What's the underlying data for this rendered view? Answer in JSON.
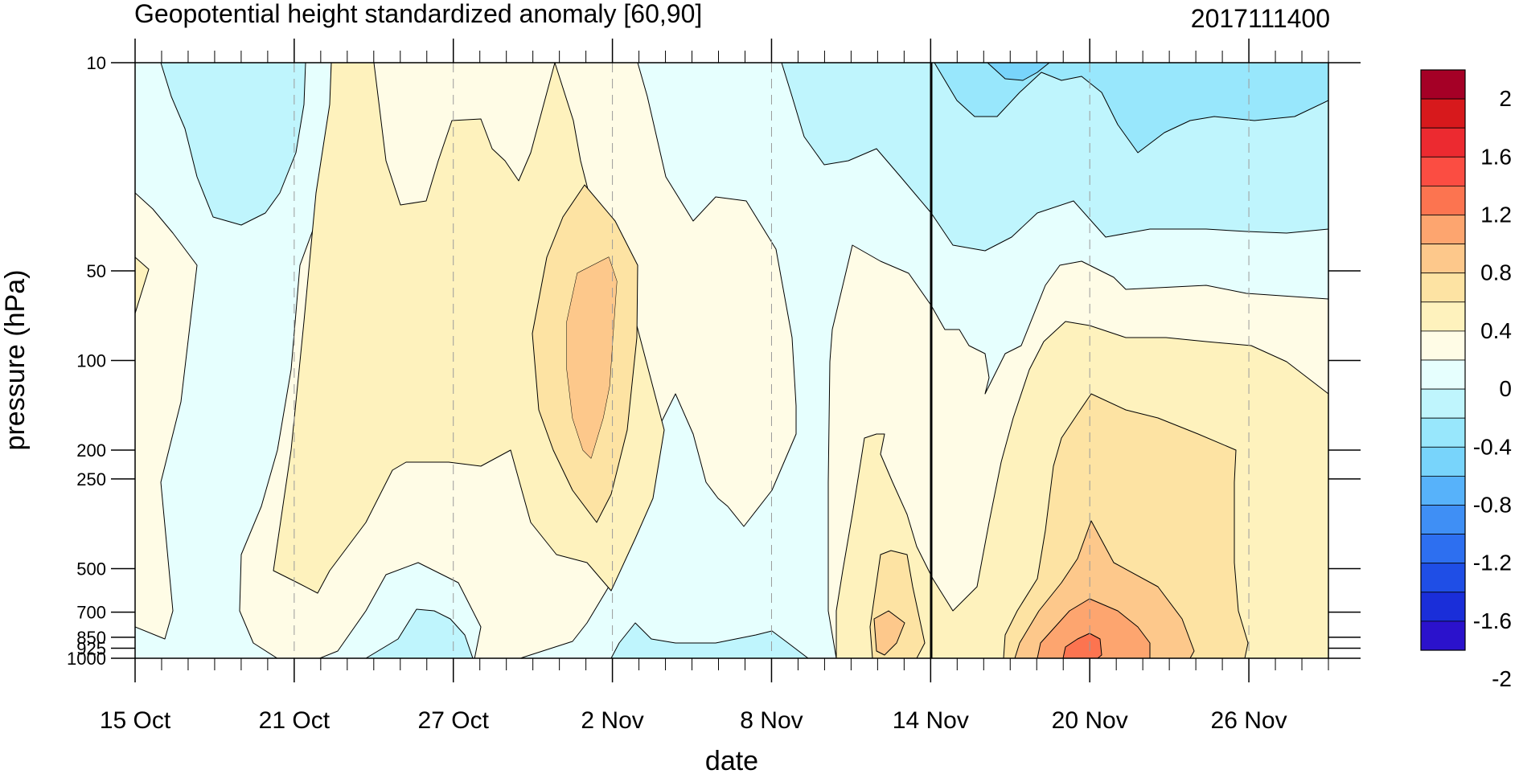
{
  "header": {
    "title": "Geopotential height standardized anomaly [60,90]",
    "timestamp": "2017111400"
  },
  "chart_data": {
    "type": "heatmap",
    "title": "Geopotential height standardized anomaly [60,90]",
    "subtitle": "2017111400",
    "xlabel": "date",
    "ylabel": "pressure (hPa)",
    "x_ticks": [
      "15 Oct",
      "21 Oct",
      "27 Oct",
      "2 Nov",
      "8 Nov",
      "14 Nov",
      "20 Nov",
      "26 Nov"
    ],
    "x_range": [
      "15 Oct",
      "29 Nov"
    ],
    "y_ticks": [
      "10",
      "50",
      "100",
      "200",
      "250",
      "500",
      "700",
      "850",
      "925",
      "1000"
    ],
    "y_range": [
      1000,
      10
    ],
    "y_scale": "log",
    "reference_line": "14 Nov",
    "grid": "dashed vertical lines at date ticks",
    "colorbar": {
      "labels": [
        "2",
        "1.6",
        "1.2",
        "0.8",
        "0.4",
        "0",
        "-0.4",
        "-0.8",
        "-1.2",
        "-1.6",
        "-2"
      ],
      "colors": [
        "#a50026",
        "#d7191c",
        "#ec2a30",
        "#fb4d42",
        "#fc7450",
        "#fda56f",
        "#fdc88b",
        "#fde3a3",
        "#fef2bd",
        "#fffce6",
        "#e6fffe",
        "#bff5fd",
        "#98e7fc",
        "#78d4fb",
        "#57b2fa",
        "#3f8ff5",
        "#2d6ff0",
        "#1f4ee6",
        "#1a2ed9",
        "#2b12cc"
      ],
      "placement": "right"
    },
    "fields": [
      {
        "level": "-0.4",
        "description": "negative anomaly regions (light cyan)"
      },
      {
        "level": "0.4",
        "description": "positive anomaly regions (light orange)"
      }
    ]
  }
}
